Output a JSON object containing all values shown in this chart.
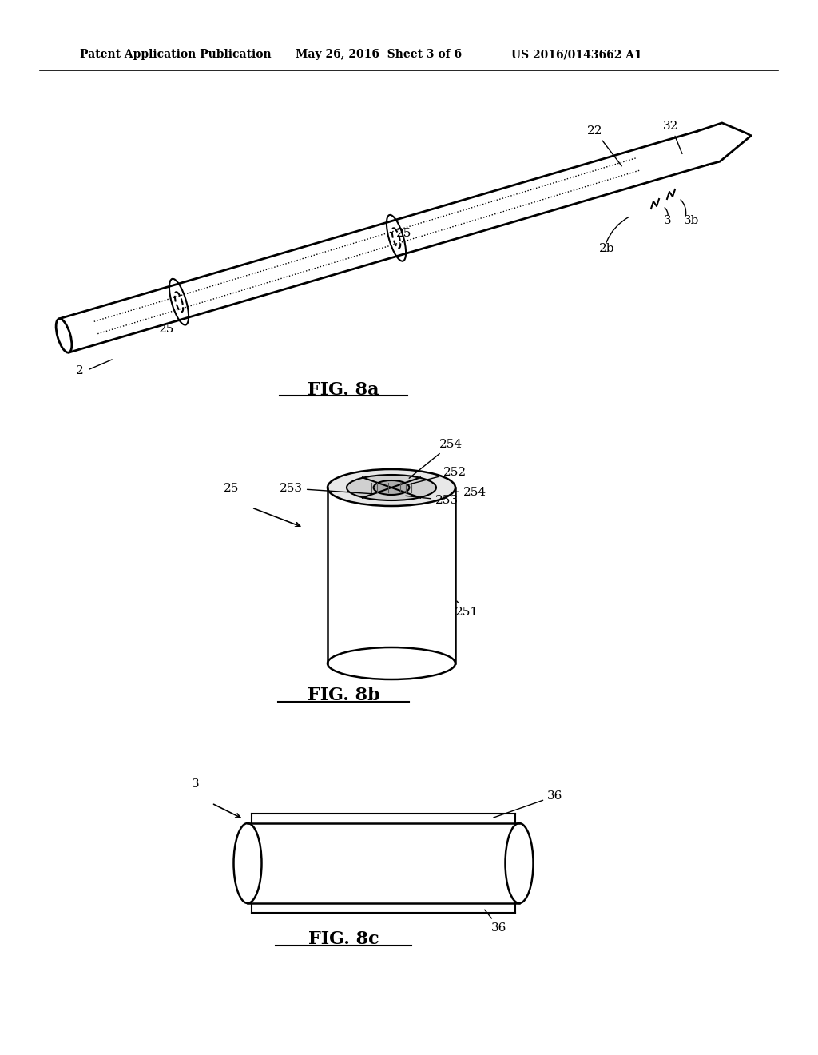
{
  "header_left": "Patent Application Publication",
  "header_mid": "May 26, 2016  Sheet 3 of 6",
  "header_right": "US 2016/0143662 A1",
  "fig8a_label": "FIG. 8a",
  "fig8b_label": "FIG. 8b",
  "fig8c_label": "FIG. 8c",
  "background_color": "#ffffff",
  "line_color": "#000000",
  "light_gray": "#cccccc",
  "medium_gray": "#888888",
  "dark_gray": "#444444"
}
